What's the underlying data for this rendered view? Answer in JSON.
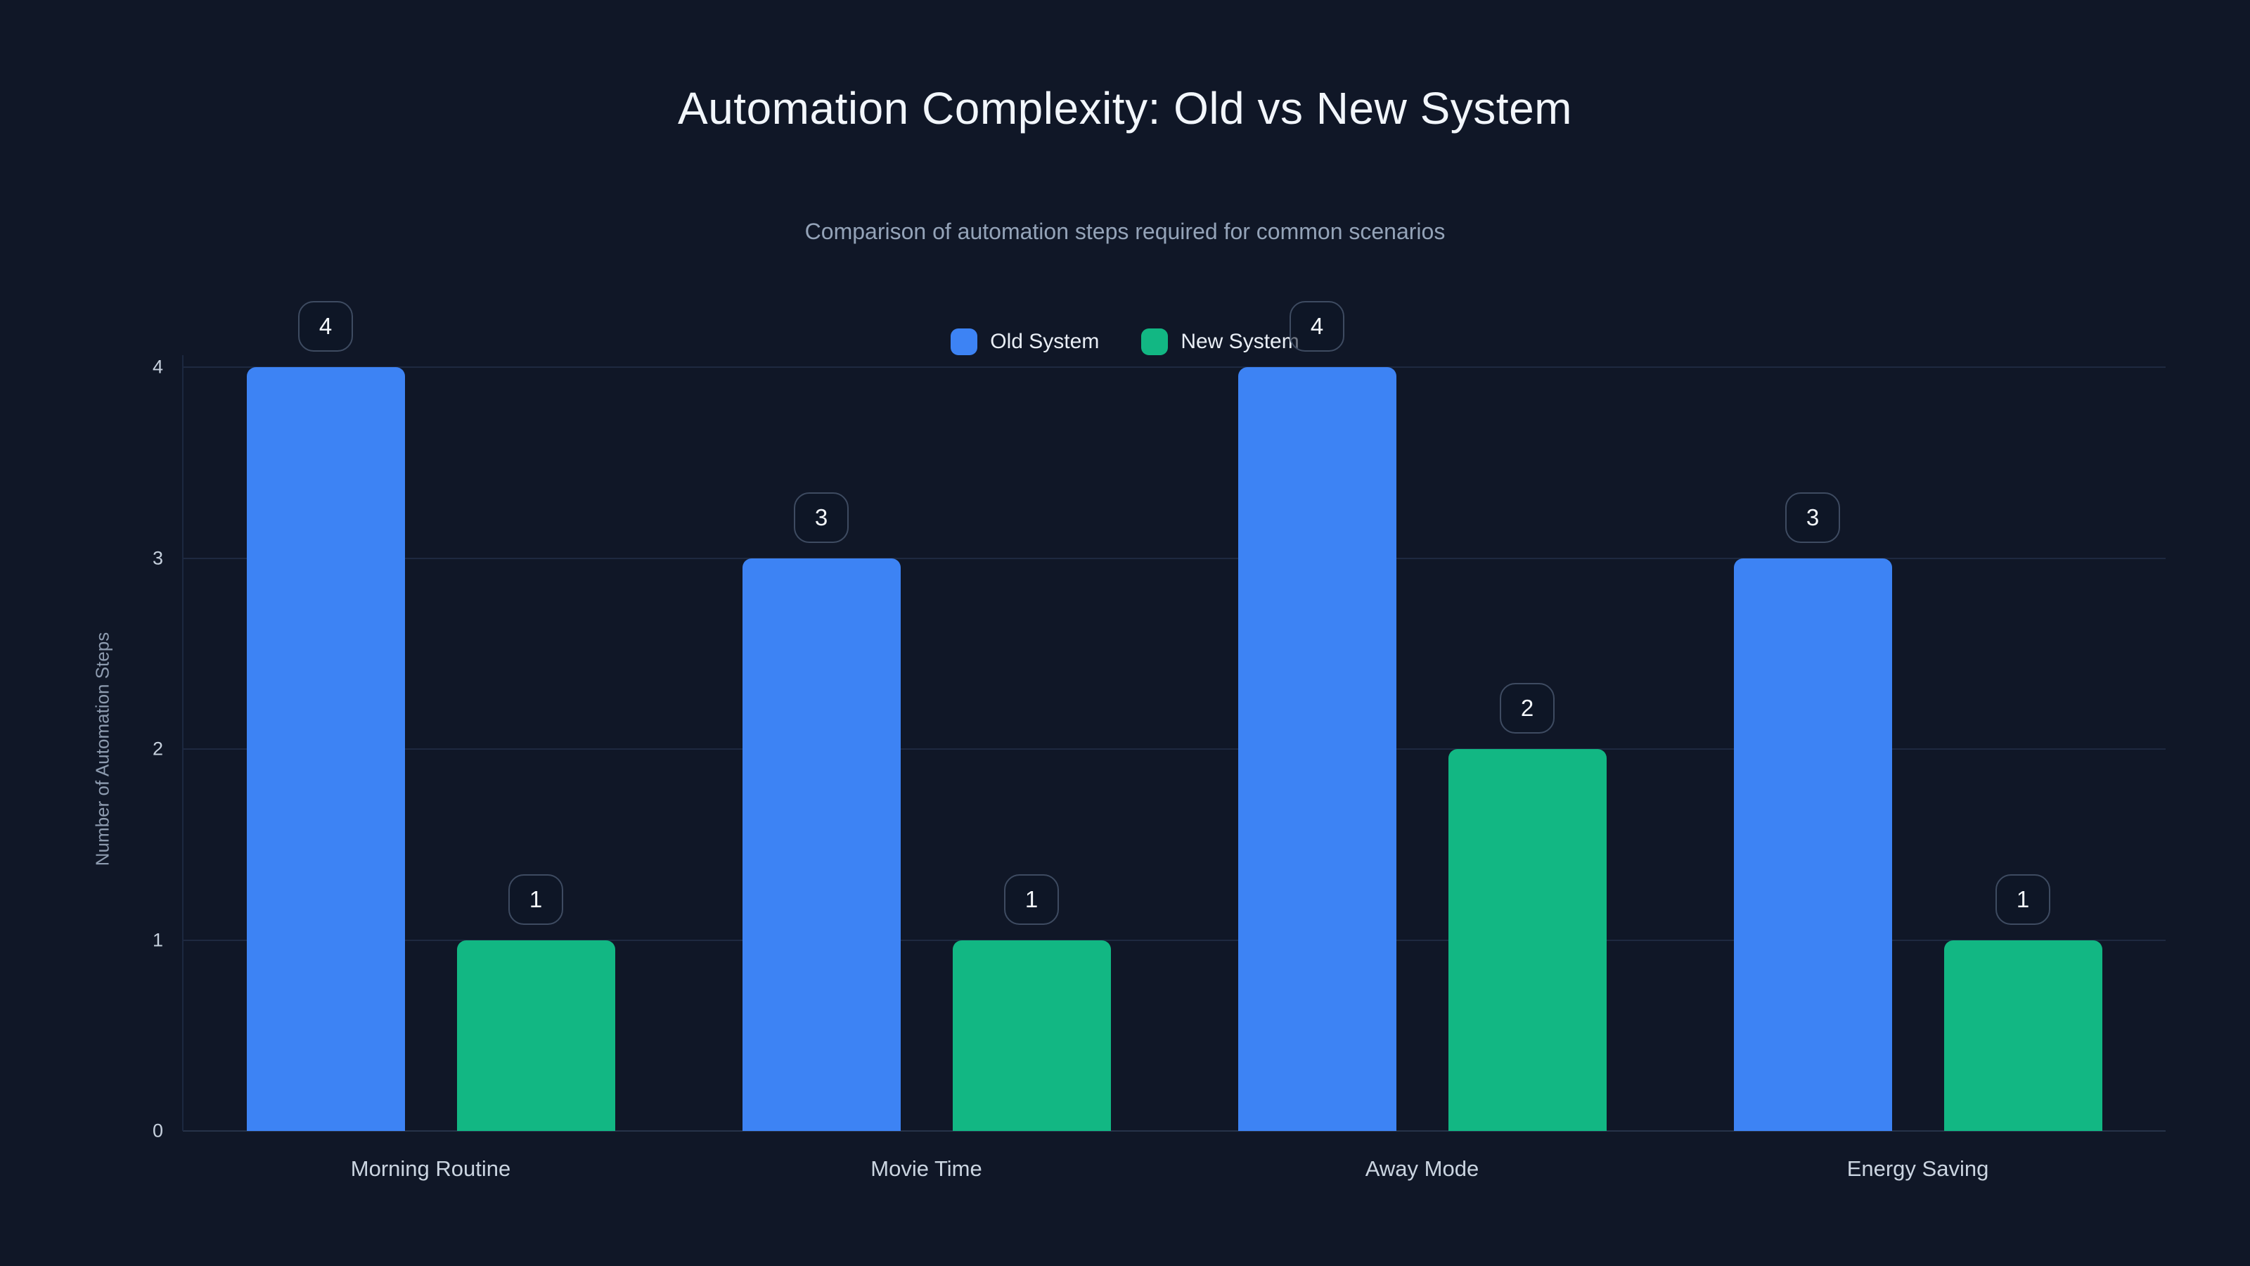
{
  "page": {
    "background_color": "#101727",
    "gridline_color": "#1e2940",
    "axis_line_color": "#273349",
    "badge_border_color": "#3e4b61"
  },
  "chart_data": {
    "type": "bar",
    "title": "Automation Complexity: Old vs New System",
    "subtitle": "Comparison of automation steps required for common scenarios",
    "categories": [
      "Morning Routine",
      "Movie Time",
      "Away Mode",
      "Energy Saving"
    ],
    "series": [
      {
        "name": "Old System",
        "color": "#3d83f4",
        "values": [
          4,
          3,
          4,
          3
        ]
      },
      {
        "name": "New System",
        "color": "#12b783",
        "values": [
          1,
          1,
          2,
          1
        ]
      }
    ],
    "xlabel": "",
    "ylabel": "Number of Automation Steps",
    "ylim": [
      0,
      4
    ],
    "yticks": [
      0,
      1,
      2,
      3,
      4
    ],
    "grid": true,
    "legend_position": "top-center",
    "value_labels": "number badge above each bar"
  }
}
